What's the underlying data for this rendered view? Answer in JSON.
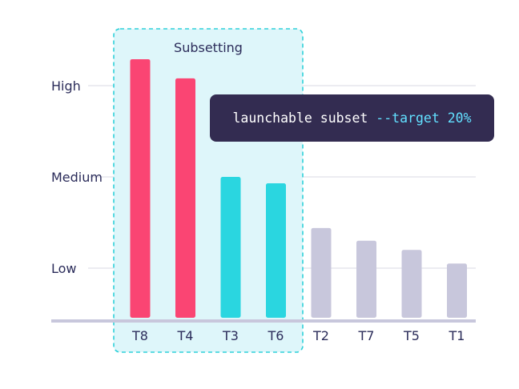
{
  "chart_data": {
    "type": "bar",
    "categories": [
      "T8",
      "T4",
      "T3",
      "T6",
      "T2",
      "T7",
      "T5",
      "T1"
    ],
    "values": [
      2.29,
      2.08,
      1.0,
      0.93,
      0.44,
      0.3,
      0.2,
      0.05
    ],
    "y_ticks": [
      {
        "value": 0,
        "label": "Low"
      },
      {
        "value": 1,
        "label": "Medium"
      },
      {
        "value": 2,
        "label": "High"
      }
    ],
    "ylim": [
      -0.55,
      2.6
    ],
    "grid": true,
    "highlight": {
      "label": "Subsetting",
      "categories": [
        "T8",
        "T4",
        "T3",
        "T6"
      ]
    },
    "colors": {
      "high": "#fa4573",
      "medium": "#2ad6e0",
      "muted": "#c8c7dc",
      "axis": "#c8c7dc",
      "grid": "#d9d9e3",
      "highlight_fill": "#def6fa",
      "highlight_border": "#2fd1d9"
    }
  },
  "command": {
    "text": "launchable subset ",
    "flag": "--target 20%"
  }
}
